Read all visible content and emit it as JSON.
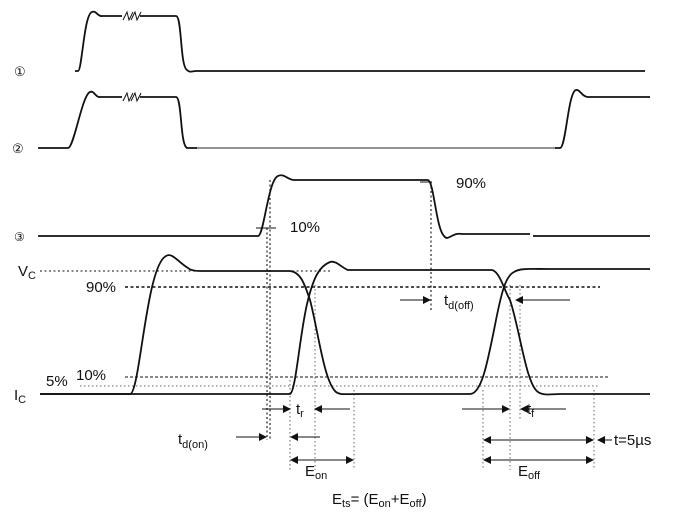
{
  "signals": {
    "s1": "①",
    "s2": "②",
    "s3": "③",
    "vc": "V",
    "vc_sub": "C",
    "ic": "I",
    "ic_sub": "C"
  },
  "levels": {
    "p90_gate": "90%",
    "p10_gate": "10%",
    "p90_vc": "90%",
    "p10_ic": "10%",
    "p5_ic": "5%"
  },
  "timing": {
    "td_off_main": "t",
    "td_off_sub": "d(off)",
    "tr_main": "t",
    "tr_sub": "r",
    "tf_main": "t",
    "tf_sub": "f",
    "td_on_main": "t",
    "td_on_sub": "d(on)",
    "eon_main": "E",
    "eon_sub": "on",
    "eoff_main": "E",
    "eoff_sub": "off",
    "t5": "t=5µs"
  },
  "formula": {
    "ets_main": "E",
    "ets_sub": "ts",
    "rest1": "= (E",
    "on_sub": "on",
    "rest2": "+E",
    "off_sub": "off",
    "rest3": ")"
  }
}
